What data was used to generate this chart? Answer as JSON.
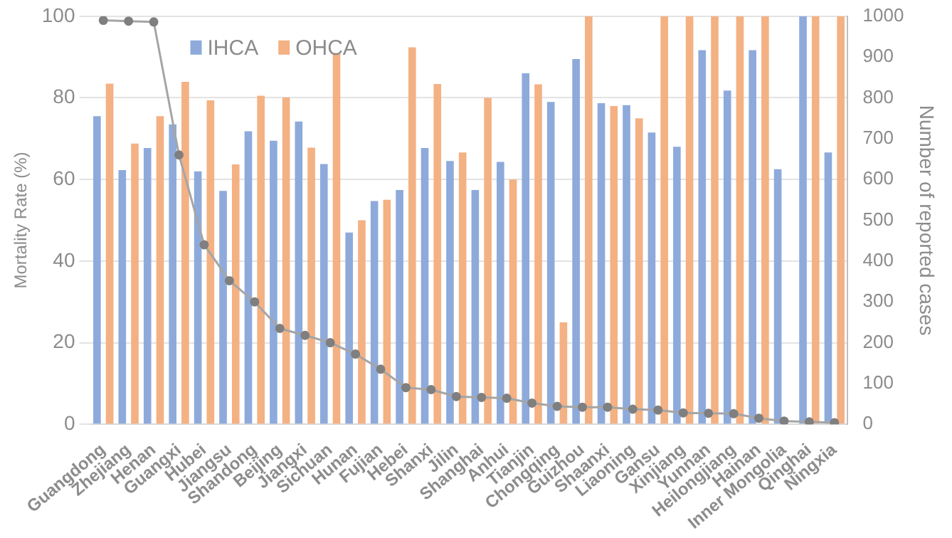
{
  "chart_data": {
    "type": "bar",
    "ylabel": "Mortality Rate (%)",
    "y2label": "Number of reported cases",
    "categories": [
      "Guangdong",
      "Zhejiang",
      "Henan",
      "Guangxi",
      "Hubei",
      "Jiangsu",
      "Shandong",
      "Beijing",
      "Jiangxi",
      "Sichuan",
      "Hunan",
      "Fujian",
      "Hebei",
      "Shanxi",
      "Jilin",
      "Shanghai",
      "Anhui",
      "Tianjin",
      "Chongqing",
      "Guizhou",
      "Shaanxi",
      "Liaoning",
      "Gansu",
      "Xinjiang",
      "Yunnan",
      "Heilongjiang",
      "Hainan",
      "Inner Mongolia",
      "Qinghai",
      "Ningxia"
    ],
    "series": [
      {
        "name": "IHCA",
        "color": "#8eaadb",
        "values": [
          75.5,
          62.3,
          67.7,
          73.5,
          62,
          57.2,
          71.8,
          69.5,
          74.2,
          63.8,
          47,
          54.7,
          57.4,
          67.7,
          64.5,
          57.4,
          64.3,
          86,
          79,
          89.5,
          78.7,
          78.2,
          71.5,
          68,
          91.7,
          81.8,
          91.7,
          62.5,
          100,
          66.6
        ]
      },
      {
        "name": "OHCA",
        "color": "#f4b183",
        "values": [
          83.5,
          68.8,
          75.5,
          83.9,
          79.4,
          63.7,
          80.5,
          80.1,
          67.8,
          91,
          50,
          55,
          92.4,
          83.4,
          66.6,
          80,
          60,
          83.3,
          25,
          100,
          78,
          75,
          100,
          100,
          100,
          100,
          100,
          null,
          100,
          100
        ]
      },
      {
        "type": "line",
        "axis": "y2",
        "color": "#a5a5a5",
        "marker": "circle",
        "values": [
          990,
          988,
          986,
          660,
          440,
          352,
          300,
          235,
          218,
          200,
          172,
          135,
          90,
          85,
          68,
          66,
          64,
          52,
          44,
          42,
          42,
          37,
          35,
          28,
          27,
          26,
          15,
          8,
          6,
          4
        ]
      }
    ],
    "ylim": [
      0,
      100
    ],
    "yticks": [
      0,
      20,
      40,
      60,
      80,
      100
    ],
    "y2lim": [
      0,
      1000
    ],
    "y2ticks": [
      0,
      100,
      200,
      300,
      400,
      500,
      600,
      700,
      800,
      900,
      1000
    ],
    "grid": "y",
    "legend": "top left"
  }
}
